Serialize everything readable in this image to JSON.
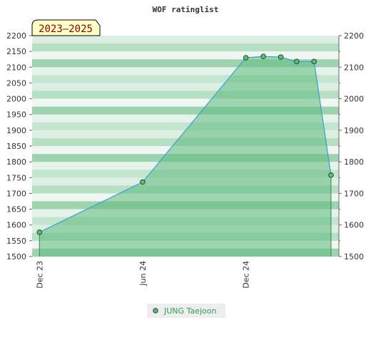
{
  "chart_data": {
    "type": "area",
    "title": "WOF ratinglist",
    "period_label": "2023–2025",
    "y_ticks": [
      1500,
      1550,
      1600,
      1650,
      1700,
      1750,
      1800,
      1850,
      1900,
      1950,
      2000,
      2050,
      2100,
      2150,
      2200
    ],
    "y_ticks_right": [
      1500,
      1600,
      1700,
      1800,
      1900,
      2000,
      2100,
      2200
    ],
    "ylim": [
      1500,
      2200
    ],
    "x_ticks": [
      {
        "label": "Dec 23",
        "date": "2023-12-01"
      },
      {
        "label": "Jun 24",
        "date": "2024-06-01"
      },
      {
        "label": "Dec 24",
        "date": "2024-12-01"
      }
    ],
    "xlim": [
      "2023-11-18",
      "2025-05-15"
    ],
    "series": [
      {
        "name": "JUNG Taejoon",
        "color": "#3d9fd0",
        "fill": "#5fba7d",
        "points": [
          {
            "date": "2023-12-01",
            "value": 1577
          },
          {
            "date": "2024-06-01",
            "value": 1736
          },
          {
            "date": "2024-12-01",
            "value": 2130
          },
          {
            "date": "2025-01-01",
            "value": 2134
          },
          {
            "date": "2025-02-01",
            "value": 2132
          },
          {
            "date": "2025-03-01",
            "value": 2118
          },
          {
            "date": "2025-04-01",
            "value": 2118
          },
          {
            "date": "2025-05-01",
            "value": 1758
          }
        ]
      }
    ],
    "grid": true,
    "legend": "bottom-center",
    "band_colors": [
      "#dcefe2",
      "#b7dfc4",
      "#f0f7f2",
      "#9fd3b0",
      "#e6f3ea",
      "#c4e5cf"
    ]
  }
}
